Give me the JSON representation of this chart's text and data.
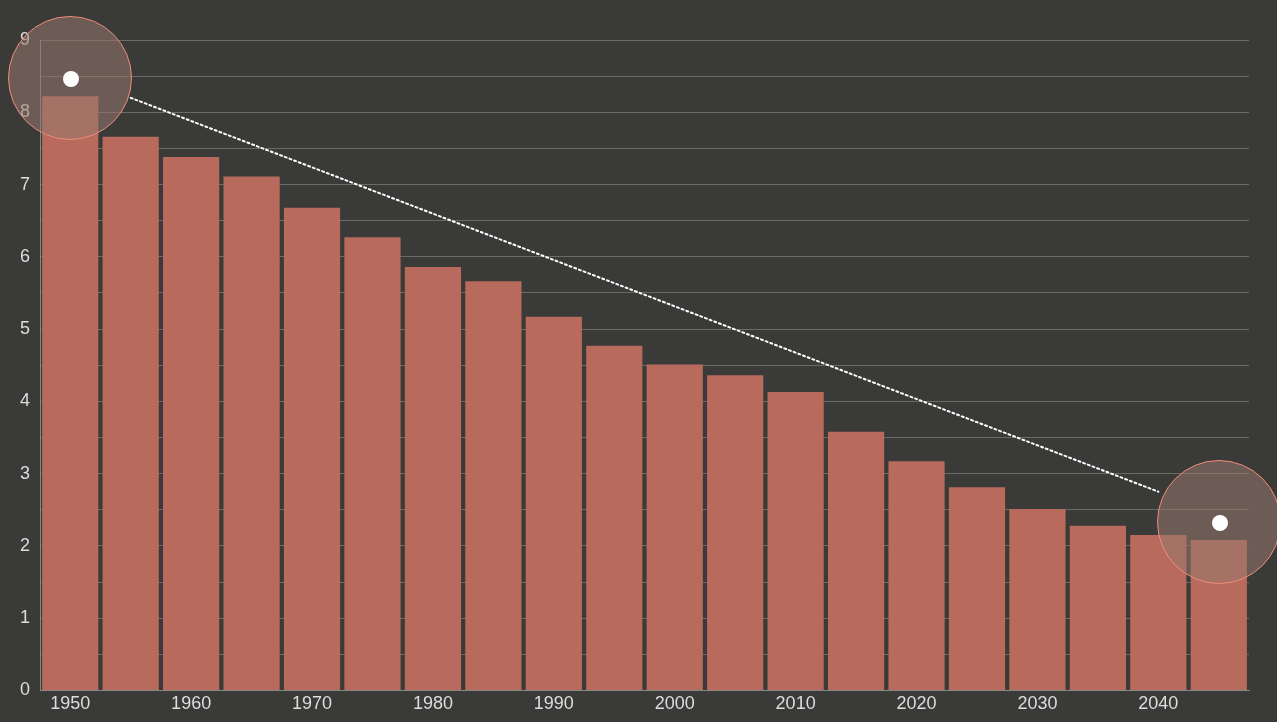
{
  "chart_data": {
    "type": "bar",
    "categories": [
      "1950",
      null,
      "1960",
      null,
      "1970",
      null,
      "1980",
      null,
      "1990",
      null,
      "2000",
      null,
      "2010",
      null,
      "2020",
      null,
      "2030",
      null,
      "2040",
      null
    ],
    "series": [
      {
        "color": "#b86a5c",
        "values": [
          8.22,
          7.66,
          7.38,
          7.11,
          6.68,
          6.27,
          5.86,
          5.66,
          5.17,
          4.77,
          4.51,
          4.36,
          4.13,
          3.58,
          3.17,
          2.81,
          2.51,
          2.28,
          2.15,
          2.08
        ]
      },
      {
        "type": "line",
        "color": "#ffffff",
        "line_style": "dotted",
        "values": [
          null,
          8.2,
          null,
          null,
          null,
          null,
          null,
          null,
          null,
          null,
          null,
          null,
          null,
          null,
          null,
          null,
          null,
          null,
          2.75,
          null
        ]
      }
    ],
    "ylim": [
      0,
      9
    ],
    "yticks": [
      0,
      {
        "value": 0.5,
        "label": null
      },
      1,
      {
        "value": 1.5,
        "label": null
      },
      2,
      {
        "value": 2.5,
        "label": null
      },
      3,
      {
        "value": 3.5,
        "label": null
      },
      4,
      {
        "value": 4.5,
        "label": null
      },
      5,
      {
        "value": 5.5,
        "label": null
      },
      6,
      {
        "value": 6.5,
        "label": null
      },
      7,
      {
        "value": 7.5,
        "label": null
      },
      8,
      {
        "value": 8.5,
        "label": null
      },
      9
    ],
    "grid": "y"
  }
}
